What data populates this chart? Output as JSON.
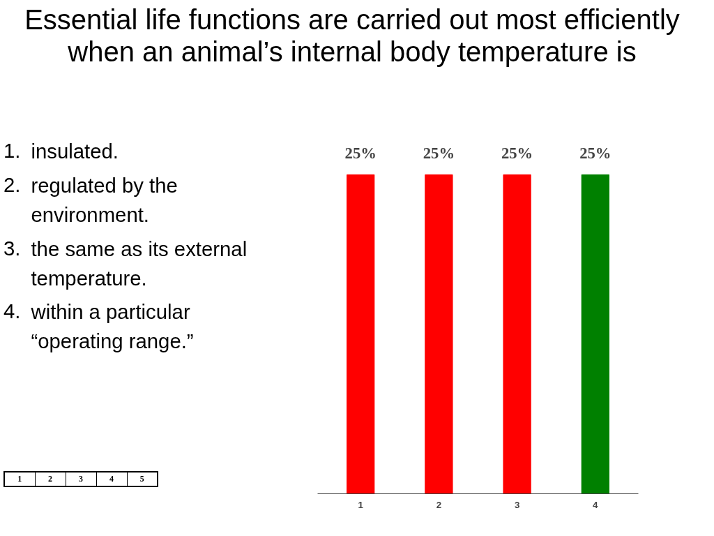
{
  "chart_data": {
    "type": "bar",
    "title": "Essential life functions are carried out most efficiently when an animal’s internal body temperature is",
    "categories": [
      "1",
      "2",
      "3",
      "4"
    ],
    "values": [
      25,
      25,
      25,
      25
    ],
    "colors": [
      "#ff0000",
      "#ff0000",
      "#ff0000",
      "#008000"
    ],
    "value_labels": [
      "25%",
      "25%",
      "25%",
      "25%"
    ],
    "grid": false,
    "annotations": [
      "1.",
      "insulated.",
      "2.",
      "regulated by the environment.",
      "3.",
      "the same as its external temperature.",
      "4.",
      "within a particular “operating range.”",
      "1",
      "2",
      "3",
      "4",
      "5"
    ]
  }
}
